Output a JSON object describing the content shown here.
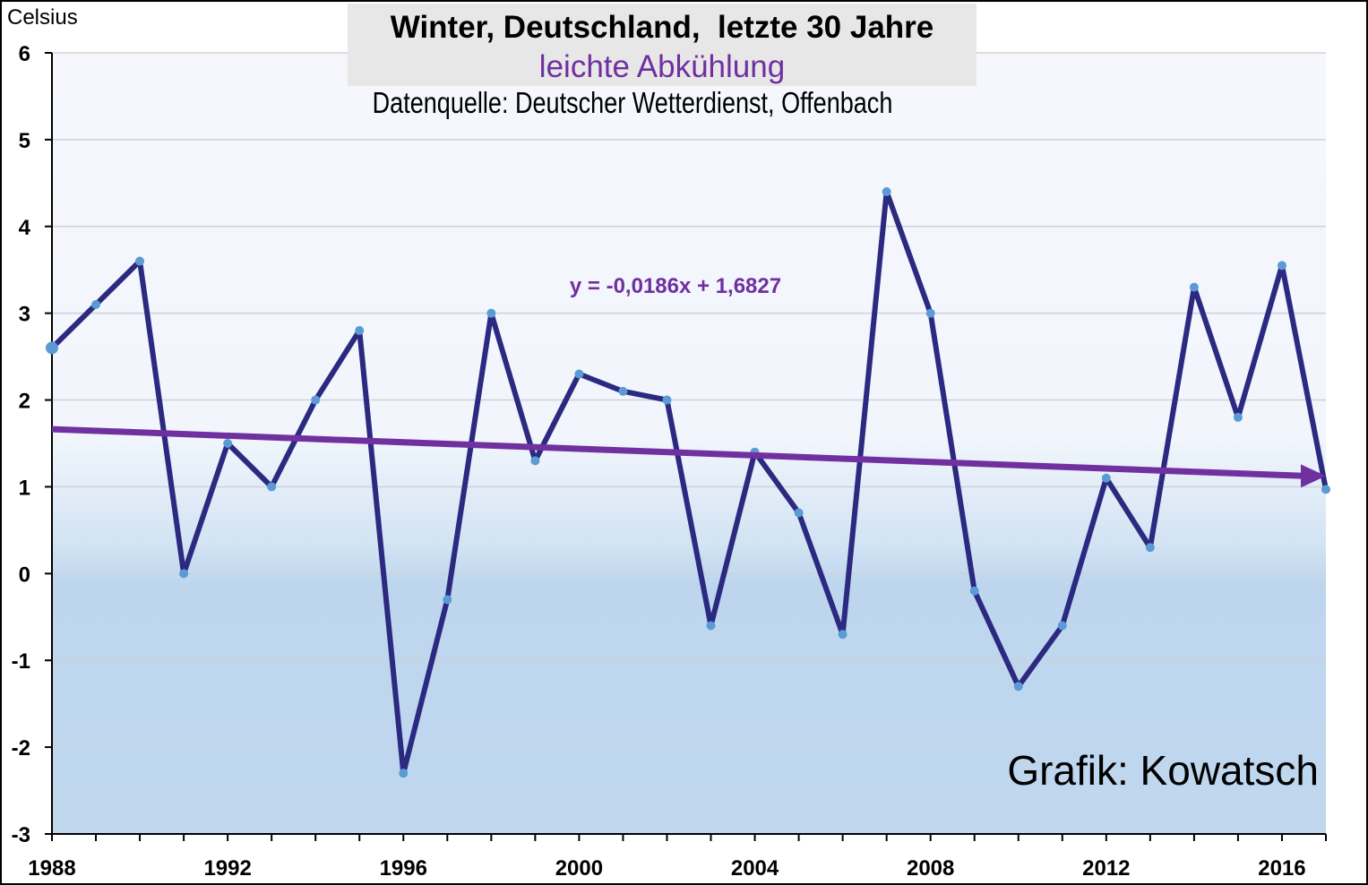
{
  "chart_data": {
    "type": "line",
    "title": "Winter, Deutschland,  letzte 30 Jahre",
    "subtitle": "leichte Abkühlung",
    "source": "Datenquelle: Deutscher Wetterdienst, Offenbach",
    "ylabel": "Celsius",
    "xlabel": "",
    "credit": "Grafik: Kowatsch",
    "trend_equation": "y = -0,0186x + 1,6827",
    "trend": {
      "slope": -0.0186,
      "intercept": 1.6827,
      "x_index_start": 1
    },
    "xlim": [
      1988,
      2017
    ],
    "ylim": [
      -3,
      6
    ],
    "xticks": [
      1988,
      1992,
      1996,
      2000,
      2004,
      2008,
      2012,
      2016
    ],
    "yticks": [
      6,
      5,
      4,
      3,
      2,
      1,
      0,
      -1,
      -2,
      -3
    ],
    "grid": true,
    "colors": {
      "line": "#2b2a80",
      "marker": "#5b9bd5",
      "trend": "#7030a0",
      "bg_top": "#f5f7fd",
      "bg_bottom": "#bdd6ee"
    },
    "x": [
      1988,
      1989,
      1990,
      1991,
      1992,
      1993,
      1994,
      1995,
      1996,
      1997,
      1998,
      1999,
      2000,
      2001,
      2002,
      2003,
      2004,
      2005,
      2006,
      2007,
      2008,
      2009,
      2010,
      2011,
      2012,
      2013,
      2014,
      2015,
      2016,
      2017
    ],
    "values": [
      2.6,
      3.1,
      3.6,
      0.0,
      1.5,
      1.0,
      2.0,
      2.8,
      -2.3,
      -0.3,
      3.0,
      1.3,
      2.3,
      2.1,
      2.0,
      -0.6,
      1.4,
      0.7,
      -0.7,
      4.4,
      3.0,
      -0.2,
      -1.3,
      -0.6,
      1.1,
      0.3,
      3.3,
      1.8,
      3.55,
      0.97
    ]
  }
}
